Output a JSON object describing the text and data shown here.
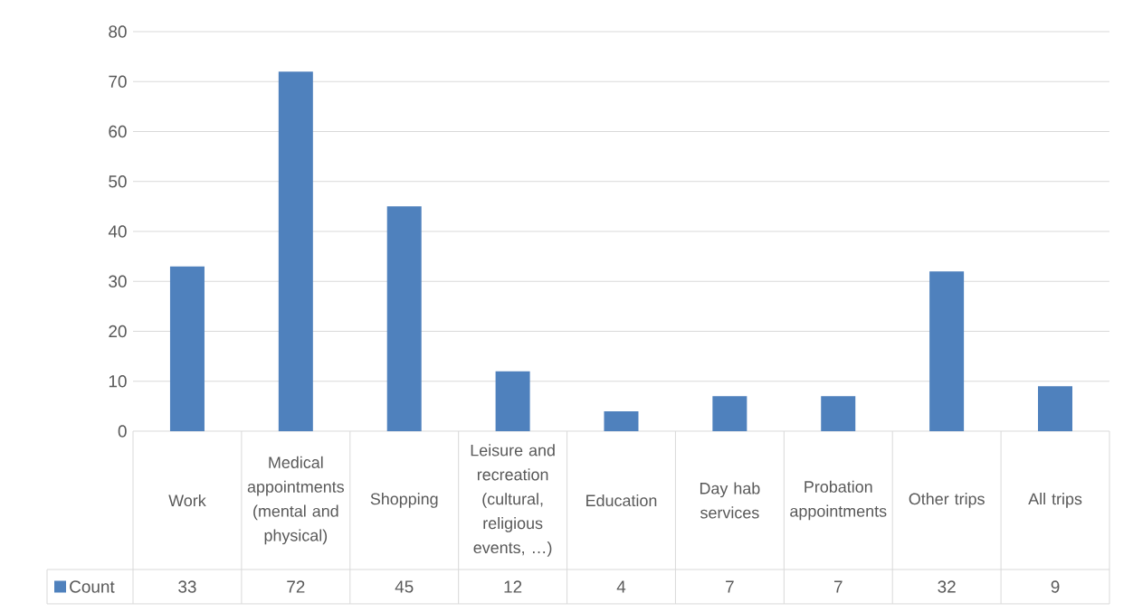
{
  "chart_data": {
    "type": "bar",
    "categories": [
      "Work",
      "Medical appointments (mental and physical)",
      "Shopping",
      "Leisure and recreation (cultural, religious events, …)",
      "Education",
      "Day hab services",
      "Probation appointments",
      "Other trips",
      "All trips"
    ],
    "series": [
      {
        "name": "Count",
        "color": "#4f81bd",
        "values": [
          33,
          72,
          45,
          12,
          4,
          7,
          7,
          32,
          9
        ]
      }
    ],
    "ylim": [
      0,
      80
    ],
    "yticks": [
      0,
      10,
      20,
      30,
      40,
      50,
      60,
      70,
      80
    ],
    "grid": "y",
    "data_labels": true,
    "legend": "bottom"
  }
}
